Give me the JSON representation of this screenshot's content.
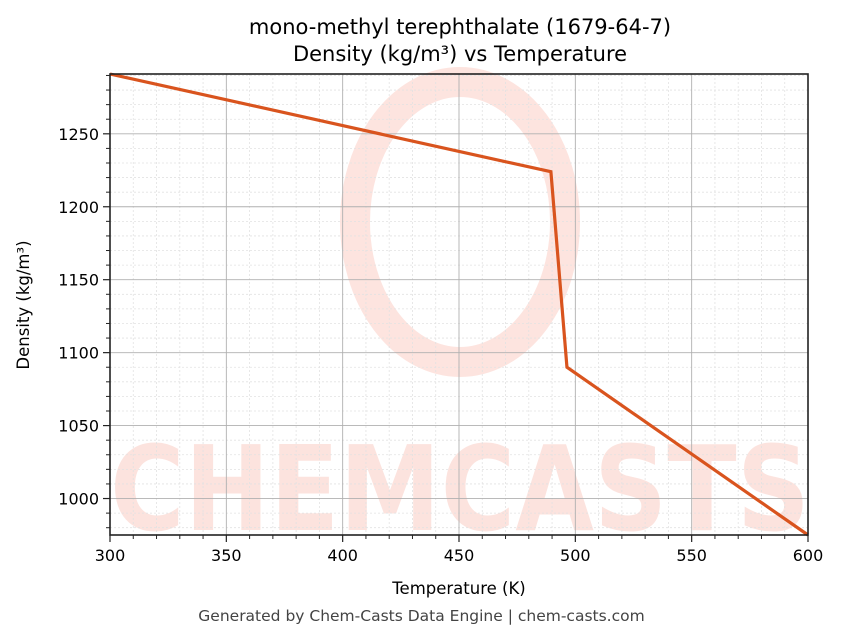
{
  "chart_data": {
    "type": "line",
    "title": "mono-methyl terephthalate (1679-64-7)",
    "subtitle": "Density (kg/m³) vs Temperature",
    "xlabel": "Temperature (K)",
    "ylabel": "Density (kg/m³)",
    "xlim": [
      300,
      600
    ],
    "ylim": [
      975,
      1291
    ],
    "xticks": [
      300,
      350,
      400,
      450,
      500,
      550,
      600
    ],
    "yticks": [
      1000,
      1050,
      1100,
      1150,
      1200,
      1250
    ],
    "grid": true,
    "minor_grid": true,
    "legend": null,
    "series": [
      {
        "name": "Density",
        "color": "#d9541e",
        "x": [
          300,
          489.5,
          496.4,
          600
        ],
        "y": [
          1291,
          1224,
          1090,
          975
        ]
      }
    ],
    "watermark": "CHEMCASTS"
  },
  "footer": {
    "text": "Generated by Chem-Casts Data Engine | chem-casts.com"
  }
}
